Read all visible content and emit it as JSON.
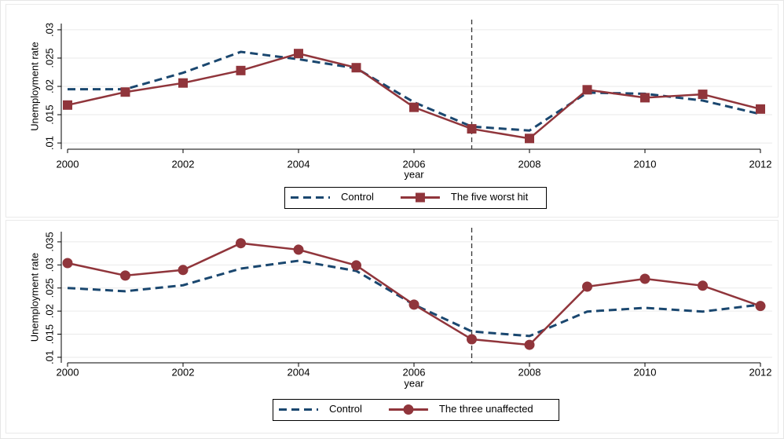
{
  "chart_data": [
    {
      "type": "line",
      "xlabel": "year",
      "ylabel": "Unemployment rate",
      "x": [
        2000,
        2001,
        2002,
        2003,
        2004,
        2005,
        2006,
        2007,
        2008,
        2009,
        2010,
        2011,
        2012
      ],
      "xlim": [
        2000,
        2012
      ],
      "xticks": [
        2000,
        2002,
        2004,
        2006,
        2008,
        2010,
        2012
      ],
      "ylim": [
        0.0089,
        0.0311
      ],
      "yticks": [
        {
          "value": 0.01,
          "label": ".01"
        },
        {
          "value": 0.015,
          "label": ".015"
        },
        {
          "value": 0.02,
          "label": ".02"
        },
        {
          "value": 0.025,
          "label": ".025"
        },
        {
          "value": 0.03,
          "label": ".03"
        }
      ],
      "grid": true,
      "vline": 2007,
      "series": [
        {
          "name": "Control",
          "color": "#1a476f",
          "linestyle": "dashed",
          "marker": "none",
          "values": [
            0.0195,
            0.0195,
            0.0224,
            0.0261,
            0.0248,
            0.0232,
            0.0172,
            0.0129,
            0.0122,
            0.0189,
            0.0187,
            0.0175,
            0.0151
          ]
        },
        {
          "name": "The five worst hit",
          "color": "#90353b",
          "linestyle": "solid",
          "marker": "square",
          "values": [
            0.0167,
            0.019,
            0.0206,
            0.0228,
            0.0258,
            0.0233,
            0.0163,
            0.0125,
            0.0108,
            0.0194,
            0.018,
            0.0186,
            0.016
          ]
        }
      ]
    },
    {
      "type": "line",
      "xlabel": "year",
      "ylabel": "Unemployment rate",
      "x": [
        2000,
        2001,
        2002,
        2003,
        2004,
        2005,
        2006,
        2007,
        2008,
        2009,
        2010,
        2011,
        2012
      ],
      "xlim": [
        2000,
        2012
      ],
      "xticks": [
        2000,
        2002,
        2004,
        2006,
        2008,
        2010,
        2012
      ],
      "ylim": [
        0.0088,
        0.0372
      ],
      "yticks": [
        {
          "value": 0.01,
          "label": ".01"
        },
        {
          "value": 0.015,
          "label": ".015"
        },
        {
          "value": 0.02,
          "label": ".02"
        },
        {
          "value": 0.025,
          "label": ".025"
        },
        {
          "value": 0.03,
          "label": ".03"
        },
        {
          "value": 0.035,
          "label": ".035"
        }
      ],
      "grid": true,
      "vline": 2007,
      "series": [
        {
          "name": "Control",
          "color": "#1a476f",
          "linestyle": "dashed",
          "marker": "none",
          "values": [
            0.025,
            0.0243,
            0.0256,
            0.0292,
            0.0309,
            0.0287,
            0.0214,
            0.0156,
            0.0146,
            0.0199,
            0.0207,
            0.0199,
            0.0214
          ]
        },
        {
          "name": "The three unaffected",
          "color": "#90353b",
          "linestyle": "solid",
          "marker": "circle",
          "values": [
            0.0304,
            0.0277,
            0.0289,
            0.0347,
            0.0333,
            0.0299,
            0.0214,
            0.0139,
            0.0127,
            0.0253,
            0.027,
            0.0255,
            0.0211
          ]
        }
      ]
    }
  ]
}
